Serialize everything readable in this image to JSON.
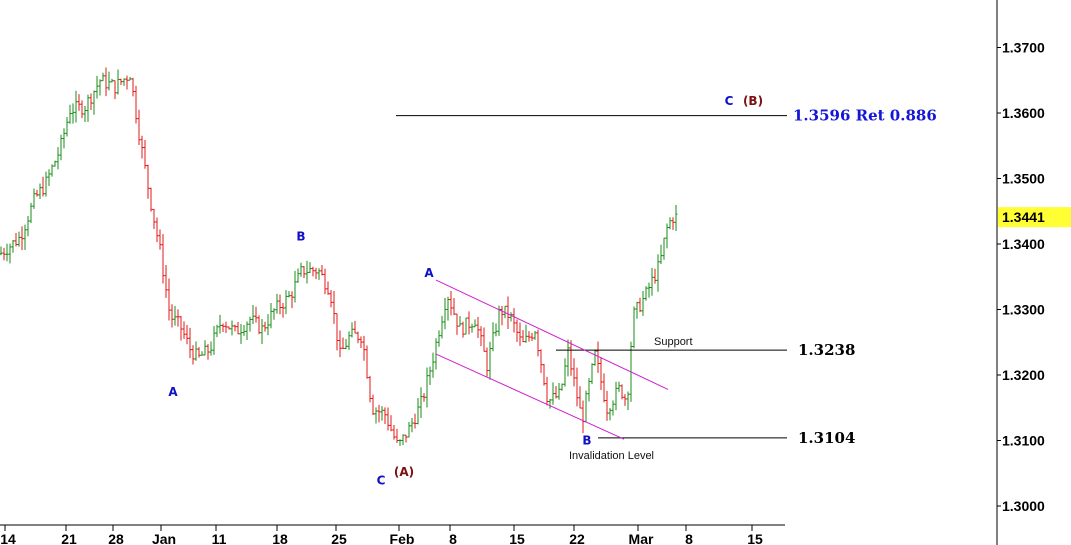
{
  "chart_data": {
    "type": "bar",
    "instrument_note": "",
    "ylim": [
      1.297,
      1.378
    ],
    "y_ticks": [
      "1.3000",
      "1.3100",
      "1.3200",
      "1.3300",
      "1.3400",
      "1.3500",
      "1.3600",
      "1.3700"
    ],
    "x_ticks": [
      "14",
      "21",
      "28",
      "Jan",
      "11",
      "18",
      "25",
      "Feb",
      "8",
      "15",
      "22",
      "Mar",
      "8",
      "15"
    ],
    "last_price": "1.3441",
    "levels": [
      {
        "name": "ret-0886",
        "price": 1.3596,
        "label": "1.3596 Ret 0.886",
        "color": "#1515d6"
      },
      {
        "name": "support",
        "price": 1.3238,
        "label": "1.3238",
        "note": "Support",
        "color": "#000000"
      },
      {
        "name": "invalidation",
        "price": 1.3104,
        "label": "1.3104",
        "note": "Invalidation Level",
        "color": "#000000"
      }
    ],
    "channel": {
      "upper": [
        [
          436,
          1.3345
        ],
        [
          668,
          1.3178
        ]
      ],
      "lower": [
        [
          436,
          1.3232
        ],
        [
          624,
          1.3102
        ]
      ],
      "color": "#d020d0"
    },
    "wave_labels": [
      {
        "text": "B",
        "style": "blue",
        "bar": 301,
        "price": 1.3405
      },
      {
        "text": "A",
        "style": "blue",
        "bar": 173,
        "price": 1.3168
      },
      {
        "text": "C",
        "style": "blue",
        "bar": 381,
        "price": 1.3033
      },
      {
        "text": "(A)",
        "style": "dark",
        "bar": 404,
        "price": 1.3046
      },
      {
        "text": "A",
        "style": "blue",
        "bar": 429,
        "price": 1.335
      },
      {
        "text": "B",
        "style": "blue",
        "bar": 587,
        "price": 1.3094
      },
      {
        "text": "C",
        "style": "blue",
        "bar": 729,
        "price": 1.3612
      },
      {
        "text": "(B)",
        "style": "dark",
        "bar": 753,
        "price": 1.3612
      }
    ],
    "anchors": [
      [
        0,
        1.3385
      ],
      [
        20,
        1.341
      ],
      [
        35,
        1.347
      ],
      [
        45,
        1.349
      ],
      [
        60,
        1.3545
      ],
      [
        70,
        1.3605
      ],
      [
        85,
        1.361
      ],
      [
        100,
        1.365
      ],
      [
        115,
        1.364
      ],
      [
        130,
        1.366
      ],
      [
        140,
        1.356
      ],
      [
        150,
        1.347
      ],
      [
        160,
        1.339
      ],
      [
        170,
        1.329
      ],
      [
        180,
        1.3275
      ],
      [
        190,
        1.324
      ],
      [
        198,
        1.3225
      ],
      [
        210,
        1.324
      ],
      [
        222,
        1.3285
      ],
      [
        235,
        1.3265
      ],
      [
        250,
        1.3285
      ],
      [
        262,
        1.327
      ],
      [
        275,
        1.33
      ],
      [
        290,
        1.332
      ],
      [
        302,
        1.336
      ],
      [
        318,
        1.336
      ],
      [
        330,
        1.333
      ],
      [
        340,
        1.323
      ],
      [
        350,
        1.326
      ],
      [
        362,
        1.326
      ],
      [
        372,
        1.315
      ],
      [
        385,
        1.314
      ],
      [
        398,
        1.309
      ],
      [
        410,
        1.312
      ],
      [
        422,
        1.316
      ],
      [
        432,
        1.322
      ],
      [
        447,
        1.3325
      ],
      [
        460,
        1.327
      ],
      [
        475,
        1.3285
      ],
      [
        487,
        1.3215
      ],
      [
        500,
        1.33
      ],
      [
        510,
        1.329
      ],
      [
        522,
        1.3245
      ],
      [
        535,
        1.327
      ],
      [
        548,
        1.316
      ],
      [
        560,
        1.317
      ],
      [
        568,
        1.3235
      ],
      [
        582,
        1.313
      ],
      [
        595,
        1.323
      ],
      [
        607,
        1.315
      ],
      [
        620,
        1.318
      ],
      [
        627,
        1.316
      ],
      [
        633,
        1.329
      ],
      [
        645,
        1.332
      ],
      [
        660,
        1.337
      ],
      [
        666,
        1.342
      ],
      [
        672,
        1.3441
      ]
    ]
  }
}
